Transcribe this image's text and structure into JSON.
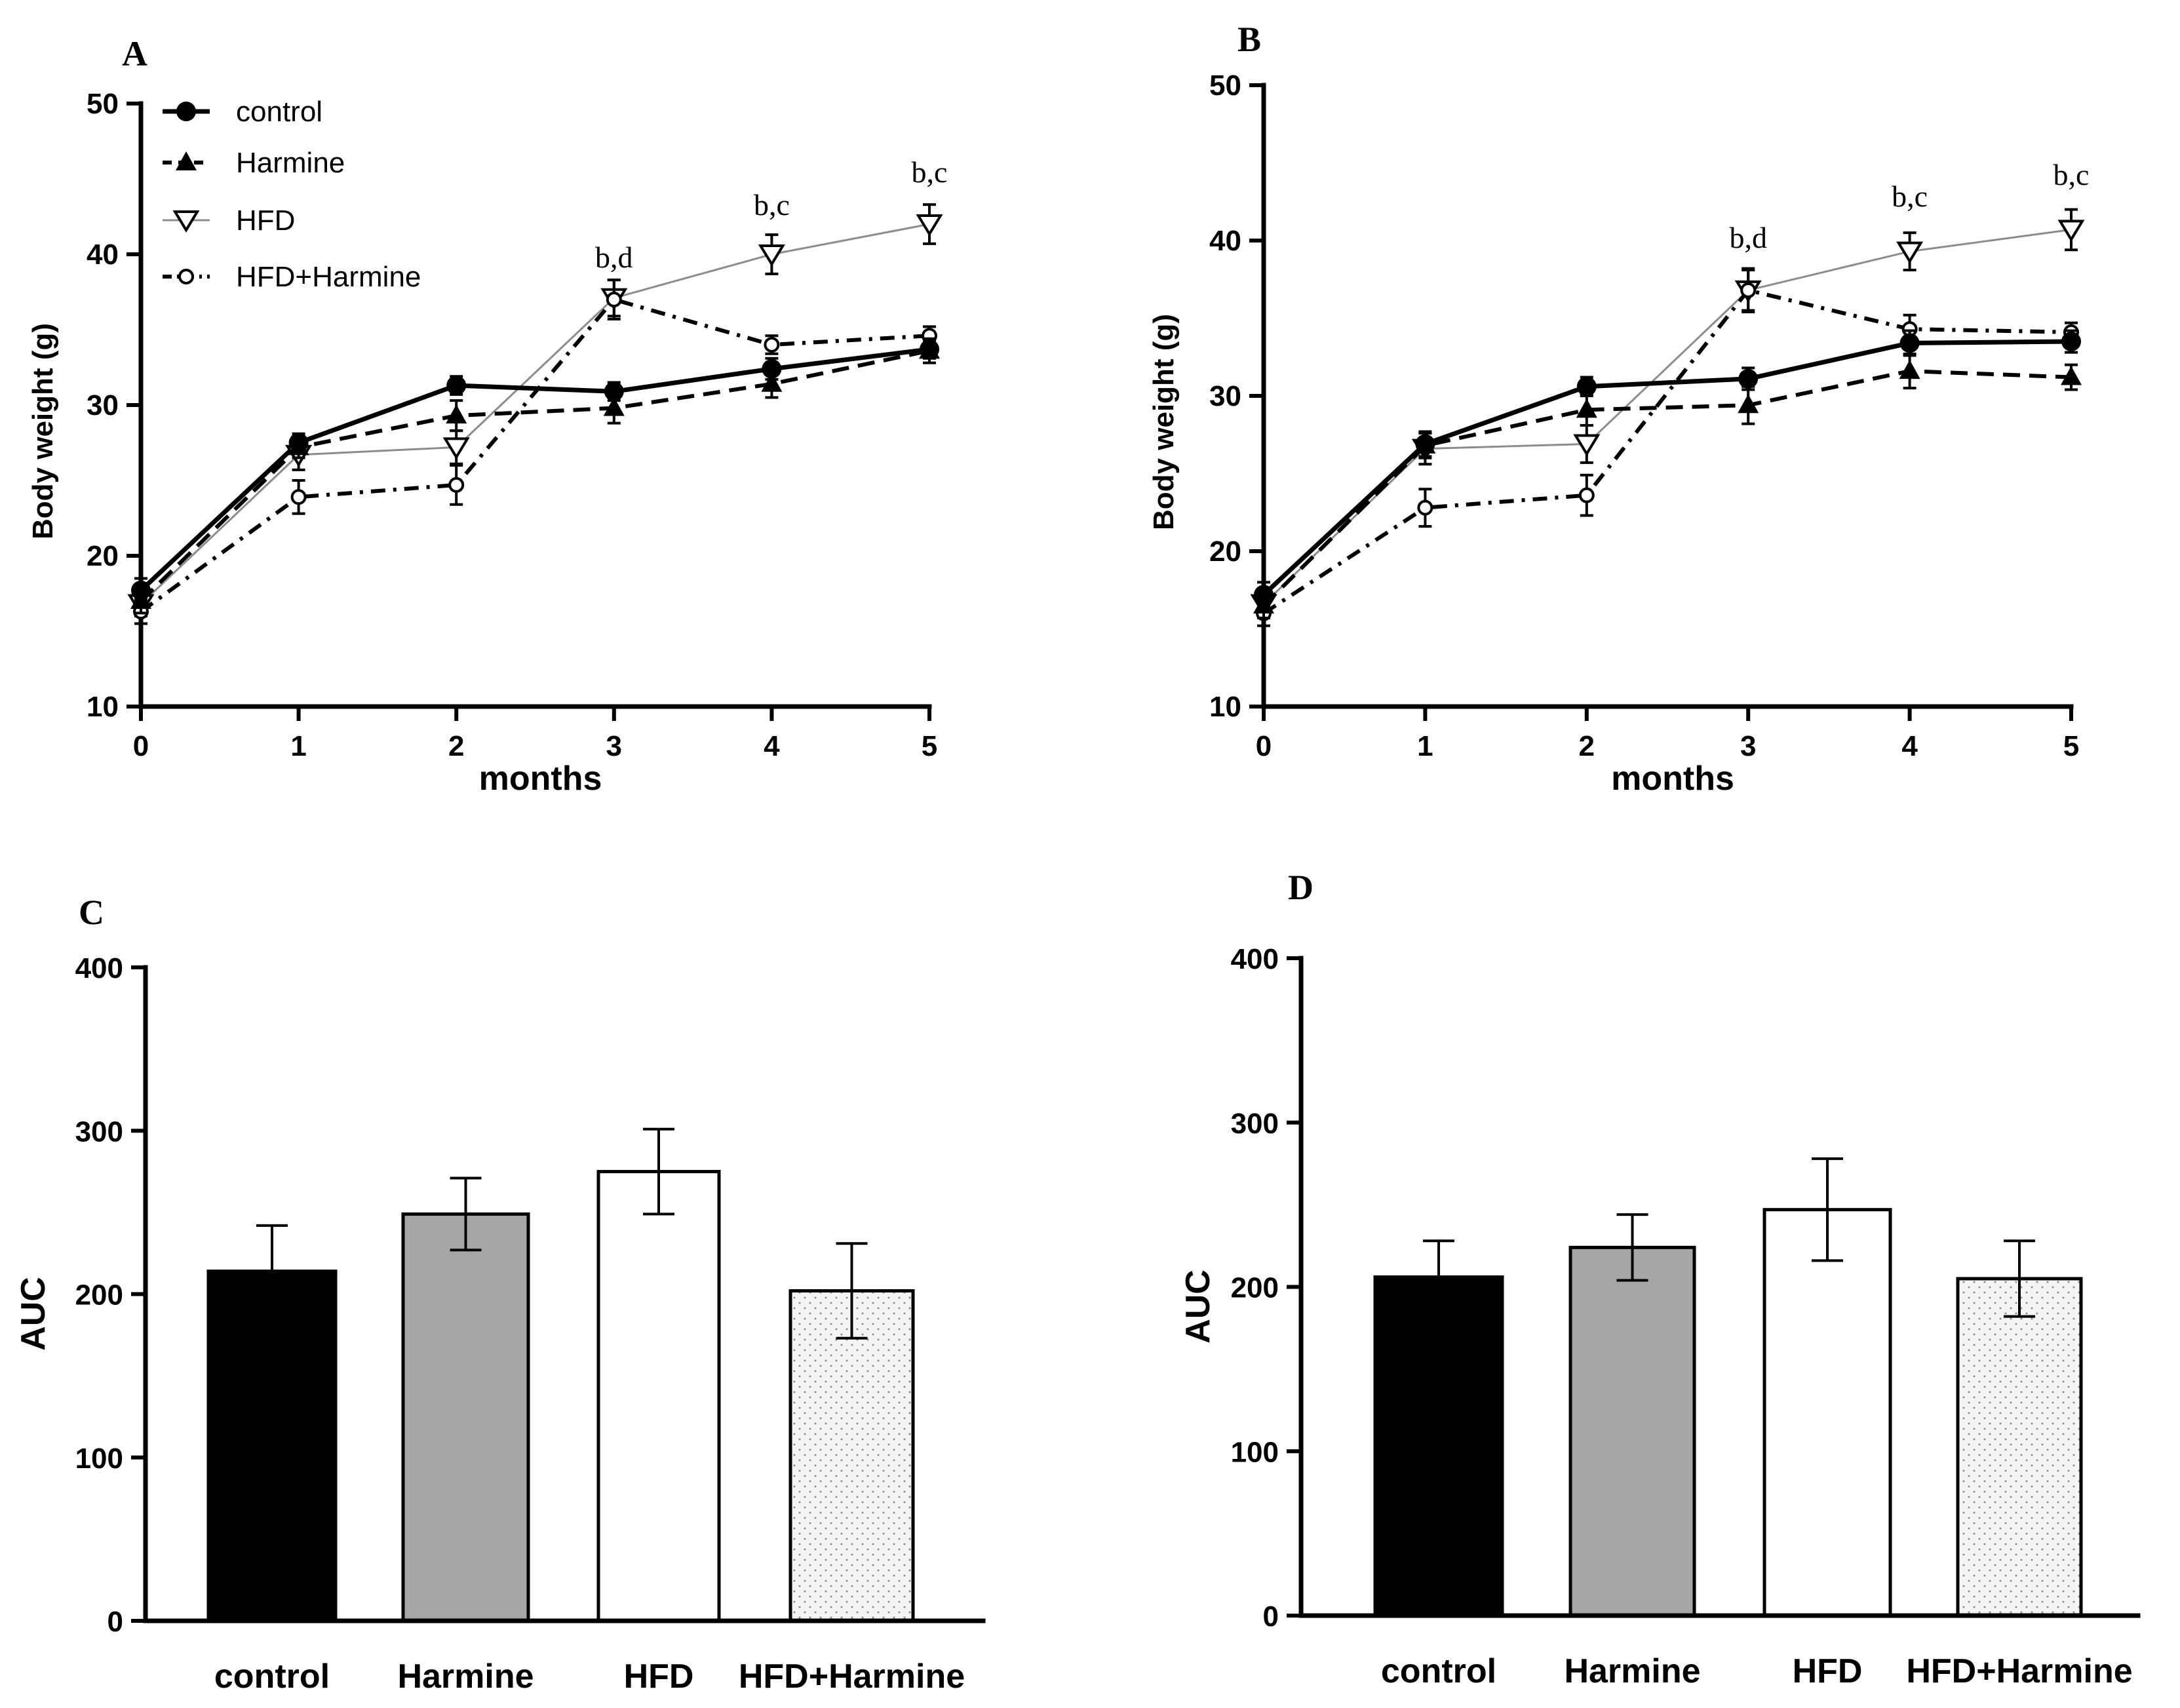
{
  "chart_data": [
    {
      "panel": "A",
      "type": "line",
      "xlabel": "months",
      "ylabel": "Body weight (g)",
      "x": [
        0,
        1,
        2,
        3,
        4,
        5
      ],
      "xlim": [
        0,
        5
      ],
      "ylim": [
        10,
        50
      ],
      "yticks": [
        10,
        20,
        30,
        40,
        50
      ],
      "legend_position": "top-left",
      "series": [
        {
          "name": "control",
          "values": [
            17.7,
            27.5,
            31.3,
            30.9,
            32.4,
            33.7
          ],
          "errors": [
            0.8,
            0.6,
            0.6,
            0.6,
            0.7,
            0.6
          ],
          "marker": "circle",
          "line": "solid-bold"
        },
        {
          "name": "Harmine",
          "values": [
            17.0,
            27.2,
            29.3,
            29.8,
            31.4,
            33.6
          ],
          "errors": [
            0.8,
            0.7,
            1.0,
            1.0,
            0.9,
            0.8
          ],
          "marker": "triangle-up",
          "line": "dashed"
        },
        {
          "name": "HFD",
          "values": [
            16.8,
            26.7,
            27.2,
            37.1,
            40.0,
            42.0
          ],
          "errors": [
            0.8,
            1.0,
            1.1,
            1.2,
            1.3,
            1.3
          ],
          "marker": "triangle-down",
          "line": "thin-gray"
        },
        {
          "name": "HFD+Harmine",
          "values": [
            16.3,
            23.9,
            24.7,
            37.0,
            34.0,
            34.6
          ],
          "errors": [
            0.8,
            1.1,
            1.3,
            1.3,
            0.6,
            0.6
          ],
          "marker": "open-circle",
          "line": "dash-dot"
        }
      ],
      "annotations": [
        {
          "x": 3,
          "text": "b,d"
        },
        {
          "x": 4,
          "text": "b,c"
        },
        {
          "x": 5,
          "text": "b,c"
        }
      ]
    },
    {
      "panel": "B",
      "type": "line",
      "xlabel": "months",
      "ylabel": "Body weight (g)",
      "x": [
        0,
        1,
        2,
        3,
        4,
        5
      ],
      "xlim": [
        0,
        5
      ],
      "ylim": [
        10,
        50
      ],
      "yticks": [
        10,
        20,
        30,
        40,
        50
      ],
      "series": [
        {
          "name": "control",
          "values": [
            17.2,
            26.9,
            30.6,
            31.1,
            33.4,
            33.5
          ],
          "errors": [
            0.8,
            0.8,
            0.6,
            0.7,
            0.8,
            0.7
          ],
          "marker": "circle",
          "line": "solid-bold"
        },
        {
          "name": "Harmine",
          "values": [
            16.5,
            26.8,
            29.1,
            29.4,
            31.6,
            31.2
          ],
          "errors": [
            0.8,
            0.8,
            1.0,
            1.2,
            1.1,
            0.8
          ],
          "marker": "triangle-up",
          "line": "dashed"
        },
        {
          "name": "HFD",
          "values": [
            16.6,
            26.6,
            26.9,
            36.8,
            39.3,
            40.7
          ],
          "errors": [
            0.8,
            1.0,
            1.2,
            1.3,
            1.2,
            1.3
          ],
          "marker": "triangle-down",
          "line": "thin-gray"
        },
        {
          "name": "HFD+Harmine",
          "values": [
            16.0,
            22.8,
            23.6,
            36.8,
            34.3,
            34.1
          ],
          "errors": [
            0.8,
            1.2,
            1.3,
            1.4,
            0.9,
            0.6
          ],
          "marker": "open-circle",
          "line": "dash-dot"
        }
      ],
      "annotations": [
        {
          "x": 3,
          "text": "b,d"
        },
        {
          "x": 4,
          "text": "b,c"
        },
        {
          "x": 5,
          "text": "b,c"
        }
      ]
    },
    {
      "panel": "C",
      "type": "bar",
      "ylabel": "AUC",
      "categories": [
        "control",
        "Harmine",
        "HFD",
        "HFD+Harmine"
      ],
      "values": [
        214,
        249,
        275,
        202
      ],
      "errors": [
        28,
        22,
        26,
        29
      ],
      "ylim": [
        0,
        400
      ],
      "yticks": [
        0,
        100,
        200,
        300,
        400
      ]
    },
    {
      "panel": "D",
      "type": "bar",
      "ylabel": "AUC",
      "categories": [
        "control",
        "Harmine",
        "HFD",
        "HFD+Harmine"
      ],
      "values": [
        206,
        224,
        247,
        205
      ],
      "errors": [
        22,
        20,
        31,
        23
      ],
      "ylim": [
        0,
        400
      ],
      "yticks": [
        0,
        100,
        200,
        300,
        400
      ]
    }
  ],
  "colors": {
    "axis": "#000000",
    "control_bar": "#000000",
    "harmine_bar": "#a6a6a6",
    "hfd_bar": "#ffffff",
    "hfd_harmine_bar": "#f2f2f2",
    "hfd_line": "#8c8c8c"
  }
}
